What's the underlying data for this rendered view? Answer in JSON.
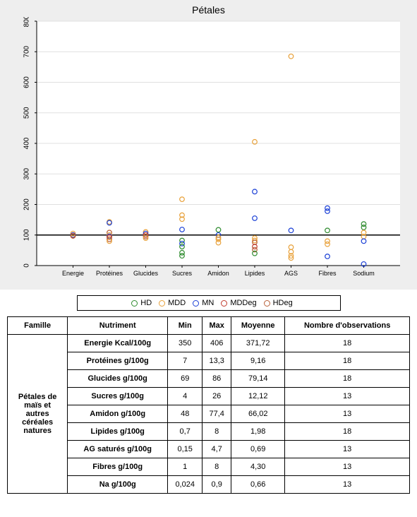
{
  "chart": {
    "title": "Pétales",
    "background_color": "#eeeeee",
    "plot_background": "#ffffff",
    "grid_color": "#e0e0e0",
    "reference_line_y": 100,
    "reference_line_color": "#000000",
    "ylim": [
      0,
      800
    ],
    "ytick_step": 100,
    "yticks": [
      0,
      100,
      200,
      300,
      400,
      500,
      600,
      700,
      800
    ],
    "categories": [
      "Energie",
      "Protéines",
      "Glucides",
      "Sucres",
      "Amidon",
      "Lipides",
      "AGS",
      "Fibres",
      "Sodium"
    ],
    "marker_radius": 3.3,
    "marker_stroke_width": 1.2,
    "marker_fill": "none",
    "series_colors": {
      "HD": "#2e8b2e",
      "MDD": "#e8a13a",
      "MN": "#1a3fd6",
      "MDDeg": "#c0392b",
      "HDeg": "#b85f37"
    },
    "legend_order": [
      "HD",
      "MDD",
      "MN",
      "MDDeg",
      "HDeg"
    ],
    "legend_labels": {
      "HD": "HD",
      "MDD": "MDD",
      "MN": "MN",
      "MDDeg": "MDDeg",
      "HDeg": "HDeg"
    },
    "points": [
      {
        "cat": "Energie",
        "y": 105,
        "series": "MDD"
      },
      {
        "cat": "Energie",
        "y": 100,
        "series": "MN"
      },
      {
        "cat": "Energie",
        "y": 98,
        "series": "MDDeg"
      },
      {
        "cat": "Energie",
        "y": 97,
        "series": "HDeg"
      },
      {
        "cat": "Protéines",
        "y": 143,
        "series": "MDD"
      },
      {
        "cat": "Protéines",
        "y": 140,
        "series": "MN"
      },
      {
        "cat": "Protéines",
        "y": 108,
        "series": "HDeg"
      },
      {
        "cat": "Protéines",
        "y": 100,
        "series": "MDD"
      },
      {
        "cat": "Protéines",
        "y": 96,
        "series": "MN"
      },
      {
        "cat": "Protéines",
        "y": 93,
        "series": "MDDeg"
      },
      {
        "cat": "Protéines",
        "y": 86,
        "series": "HDeg"
      },
      {
        "cat": "Protéines",
        "y": 80,
        "series": "MDD"
      },
      {
        "cat": "Glucides",
        "y": 110,
        "series": "MDD"
      },
      {
        "cat": "Glucides",
        "y": 105,
        "series": "MN"
      },
      {
        "cat": "Glucides",
        "y": 100,
        "series": "MDDeg"
      },
      {
        "cat": "Glucides",
        "y": 95,
        "series": "HDeg"
      },
      {
        "cat": "Glucides",
        "y": 90,
        "series": "MDD"
      },
      {
        "cat": "Sucres",
        "y": 217,
        "series": "MDD"
      },
      {
        "cat": "Sucres",
        "y": 165,
        "series": "MDD"
      },
      {
        "cat": "Sucres",
        "y": 152,
        "series": "MDD"
      },
      {
        "cat": "Sucres",
        "y": 118,
        "series": "MN"
      },
      {
        "cat": "Sucres",
        "y": 82,
        "series": "HD"
      },
      {
        "cat": "Sucres",
        "y": 72,
        "series": "MN"
      },
      {
        "cat": "Sucres",
        "y": 62,
        "series": "HD"
      },
      {
        "cat": "Sucres",
        "y": 42,
        "series": "HD"
      },
      {
        "cat": "Sucres",
        "y": 32,
        "series": "HD"
      },
      {
        "cat": "Amidon",
        "y": 117,
        "series": "HD"
      },
      {
        "cat": "Amidon",
        "y": 100,
        "series": "MN"
      },
      {
        "cat": "Amidon",
        "y": 92,
        "series": "MDD"
      },
      {
        "cat": "Amidon",
        "y": 86,
        "series": "MDD"
      },
      {
        "cat": "Amidon",
        "y": 75,
        "series": "MDD"
      },
      {
        "cat": "Lipides",
        "y": 405,
        "series": "MDD"
      },
      {
        "cat": "Lipides",
        "y": 242,
        "series": "MN"
      },
      {
        "cat": "Lipides",
        "y": 155,
        "series": "MN"
      },
      {
        "cat": "Lipides",
        "y": 90,
        "series": "MDD"
      },
      {
        "cat": "Lipides",
        "y": 82,
        "series": "MDD"
      },
      {
        "cat": "Lipides",
        "y": 76,
        "series": "HDeg"
      },
      {
        "cat": "Lipides",
        "y": 62,
        "series": "MDDeg"
      },
      {
        "cat": "Lipides",
        "y": 52,
        "series": "HDeg"
      },
      {
        "cat": "Lipides",
        "y": 40,
        "series": "HD"
      },
      {
        "cat": "AGS",
        "y": 685,
        "series": "MDD"
      },
      {
        "cat": "AGS",
        "y": 115,
        "series": "MN"
      },
      {
        "cat": "AGS",
        "y": 60,
        "series": "MDD"
      },
      {
        "cat": "AGS",
        "y": 45,
        "series": "MDD"
      },
      {
        "cat": "AGS",
        "y": 32,
        "series": "MDD"
      },
      {
        "cat": "AGS",
        "y": 25,
        "series": "MDD"
      },
      {
        "cat": "Fibres",
        "y": 188,
        "series": "MN"
      },
      {
        "cat": "Fibres",
        "y": 178,
        "series": "MN"
      },
      {
        "cat": "Fibres",
        "y": 115,
        "series": "HD"
      },
      {
        "cat": "Fibres",
        "y": 80,
        "series": "MDD"
      },
      {
        "cat": "Fibres",
        "y": 70,
        "series": "MDD"
      },
      {
        "cat": "Fibres",
        "y": 30,
        "series": "MN"
      },
      {
        "cat": "Sodium",
        "y": 136,
        "series": "HD"
      },
      {
        "cat": "Sodium",
        "y": 125,
        "series": "HD"
      },
      {
        "cat": "Sodium",
        "y": 108,
        "series": "MDD"
      },
      {
        "cat": "Sodium",
        "y": 95,
        "series": "MDD"
      },
      {
        "cat": "Sodium",
        "y": 80,
        "series": "MN"
      },
      {
        "cat": "Sodium",
        "y": 5,
        "series": "MN"
      }
    ]
  },
  "table": {
    "headers": [
      "Famille",
      "Nutriment",
      "Min",
      "Max",
      "Moyenne",
      "Nombre d'observations"
    ],
    "rowhead": "Pétales de maïs et autres céréales natures",
    "rows": [
      {
        "nutriment": "Energie Kcal/100g",
        "min": "350",
        "max": "406",
        "moy": "371,72",
        "n": "18"
      },
      {
        "nutriment": "Protéines g/100g",
        "min": "7",
        "max": "13,3",
        "moy": "9,16",
        "n": "18"
      },
      {
        "nutriment": "Glucides g/100g",
        "min": "69",
        "max": "86",
        "moy": "79,14",
        "n": "18"
      },
      {
        "nutriment": "Sucres g/100g",
        "min": "4",
        "max": "26",
        "moy": "12,12",
        "n": "13"
      },
      {
        "nutriment": "Amidon g/100g",
        "min": "48",
        "max": "77,4",
        "moy": "66,02",
        "n": "13"
      },
      {
        "nutriment": "Lipides g/100g",
        "min": "0,7",
        "max": "8",
        "moy": "1,98",
        "n": "18"
      },
      {
        "nutriment": "AG saturés g/100g",
        "min": "0,15",
        "max": "4,7",
        "moy": "0,69",
        "n": "13"
      },
      {
        "nutriment": "Fibres g/100g",
        "min": "1",
        "max": "8",
        "moy": "4,30",
        "n": "13"
      },
      {
        "nutriment": "Na g/100g",
        "min": "0,024",
        "max": "0,9",
        "moy": "0,66",
        "n": "13"
      }
    ]
  }
}
